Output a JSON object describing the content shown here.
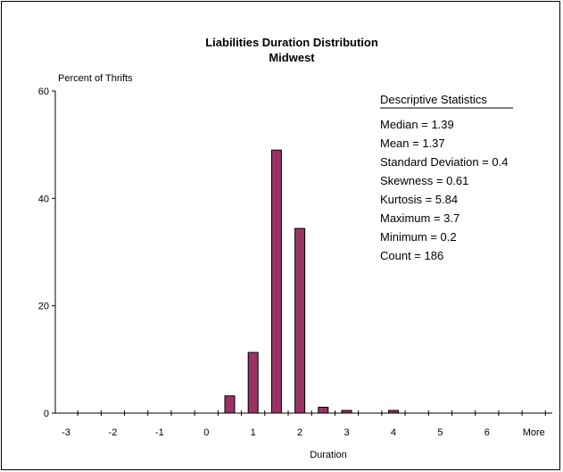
{
  "chart_data": {
    "type": "bar",
    "title": "Liabilities Duration Distribution",
    "subtitle": "Midwest",
    "ylabel": "Percent of Thrifts",
    "xlabel": "Duration",
    "categories": [
      "-3",
      "-2.5",
      "-2",
      "-1.5",
      "-1",
      "-0.5",
      "0",
      "0.5",
      "1",
      "1.5",
      "2",
      "2.5",
      "3",
      "3.5",
      "4",
      "4.5",
      "5",
      "5.5",
      "6",
      "6.5",
      "More"
    ],
    "x_tick_labels": [
      "-3",
      "-2",
      "-1",
      "0",
      "1",
      "2",
      "3",
      "4",
      "5",
      "6",
      "More"
    ],
    "values": [
      0,
      0,
      0,
      0,
      0,
      0,
      0,
      3.2,
      11.3,
      49.0,
      34.4,
      1.1,
      0.5,
      0,
      0.5,
      0,
      0,
      0,
      0,
      0,
      0
    ],
    "y_ticks": [
      "0",
      "20",
      "40",
      "60"
    ],
    "ylim": [
      0,
      60
    ],
    "grid": false,
    "bar_color": "#993366",
    "stats_box": {
      "heading": "Descriptive Statistics",
      "lines": [
        "Median = 1.39",
        "Mean = 1.37",
        "Standard Deviation = 0.4",
        "Skewness = 0.61",
        "Kurtosis = 5.84",
        "Maximum = 3.7",
        "Minimum = 0.2",
        "Count = 186"
      ]
    }
  }
}
